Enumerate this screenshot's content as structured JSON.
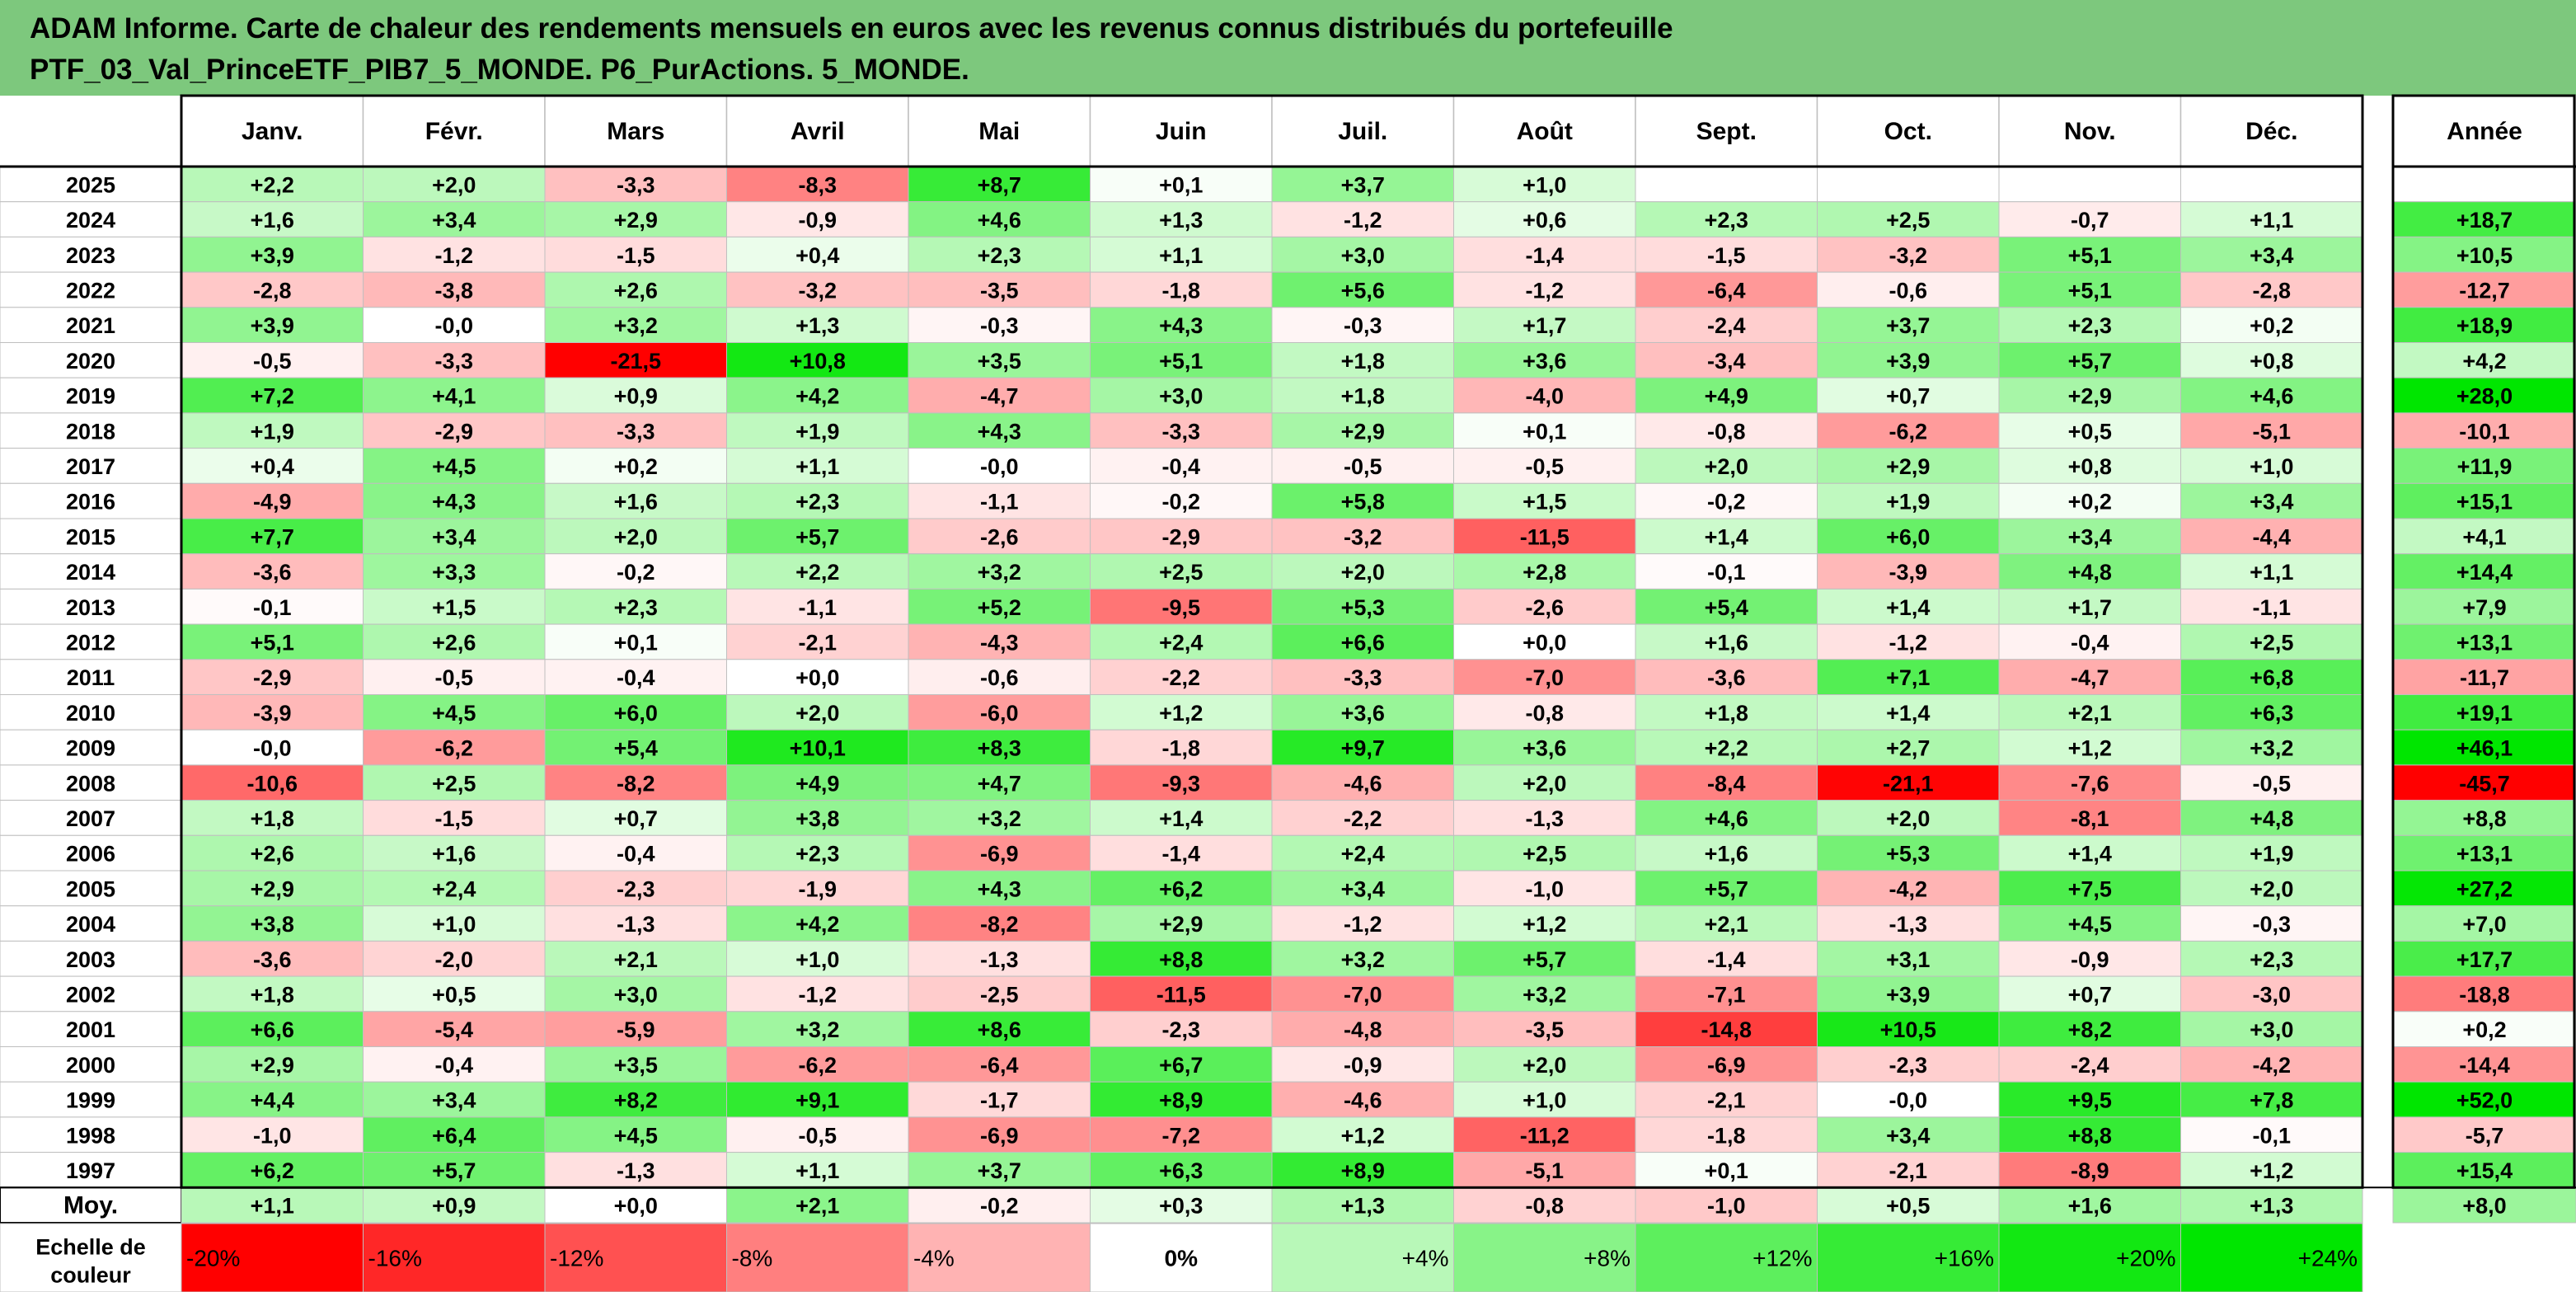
{
  "title_line1": "ADAM Informe. Carte de chaleur des rendements mensuels en euros avec les revenus connus distribués du portefeuille",
  "title_line2": "PTF_03_Val_PrinceETF_PIB7_5_MONDE. P6_PurActions. 5_MONDE.",
  "header_bg": "#7dc87d",
  "chart_data": {
    "type": "heatmap",
    "months": [
      "Janv.",
      "Févr.",
      "Mars",
      "Avril",
      "Mai",
      "Juin",
      "Juil.",
      "Août",
      "Sept.",
      "Oct.",
      "Nov.",
      "Déc."
    ],
    "year_label": "Année",
    "rows": [
      {
        "year": "2025",
        "values": [
          2.2,
          2.0,
          -3.3,
          -8.3,
          8.7,
          0.1,
          3.7,
          1.0,
          null,
          null,
          null,
          null
        ],
        "annual": null
      },
      {
        "year": "2024",
        "values": [
          1.6,
          3.4,
          2.9,
          -0.9,
          4.6,
          1.3,
          -1.2,
          0.6,
          2.3,
          2.5,
          -0.7,
          1.1
        ],
        "annual": 18.7
      },
      {
        "year": "2023",
        "values": [
          3.9,
          -1.2,
          -1.5,
          0.4,
          2.3,
          1.1,
          3.0,
          -1.4,
          -1.5,
          -3.2,
          5.1,
          3.4
        ],
        "annual": 10.5
      },
      {
        "year": "2022",
        "values": [
          -2.8,
          -3.8,
          2.6,
          -3.2,
          -3.5,
          -1.8,
          5.6,
          -1.2,
          -6.4,
          -0.6,
          5.1,
          -2.8
        ],
        "annual": -12.7
      },
      {
        "year": "2021",
        "values": [
          3.9,
          -0.0,
          3.2,
          1.3,
          -0.3,
          4.3,
          -0.3,
          1.7,
          -2.4,
          3.7,
          2.3,
          0.2
        ],
        "annual": 18.9
      },
      {
        "year": "2020",
        "values": [
          -0.5,
          -3.3,
          -21.5,
          10.8,
          3.5,
          5.1,
          1.8,
          3.6,
          -3.4,
          3.9,
          5.7,
          0.8
        ],
        "annual": 4.2
      },
      {
        "year": "2019",
        "values": [
          7.2,
          4.1,
          0.9,
          4.2,
          -4.7,
          3.0,
          1.8,
          -4.0,
          4.9,
          0.7,
          2.9,
          4.6
        ],
        "annual": 28.0
      },
      {
        "year": "2018",
        "values": [
          1.9,
          -2.9,
          -3.3,
          1.9,
          4.3,
          -3.3,
          2.9,
          0.1,
          -0.8,
          -6.2,
          0.5,
          -5.1
        ],
        "annual": -10.1
      },
      {
        "year": "2017",
        "values": [
          0.4,
          4.5,
          0.2,
          1.1,
          -0.0,
          -0.4,
          -0.5,
          -0.5,
          2.0,
          2.9,
          0.8,
          1.0
        ],
        "annual": 11.9
      },
      {
        "year": "2016",
        "values": [
          -4.9,
          4.3,
          1.6,
          2.3,
          -1.1,
          -0.2,
          5.8,
          1.5,
          -0.2,
          1.9,
          0.2,
          3.4
        ],
        "annual": 15.1
      },
      {
        "year": "2015",
        "values": [
          7.7,
          3.4,
          2.0,
          5.7,
          -2.6,
          -2.9,
          -3.2,
          -11.5,
          1.4,
          6.0,
          3.4,
          -4.4
        ],
        "annual": 4.1
      },
      {
        "year": "2014",
        "values": [
          -3.6,
          3.3,
          -0.2,
          2.2,
          3.2,
          2.5,
          2.0,
          2.8,
          -0.1,
          -3.9,
          4.8,
          1.1
        ],
        "annual": 14.4
      },
      {
        "year": "2013",
        "values": [
          -0.1,
          1.5,
          2.3,
          -1.1,
          5.2,
          -9.5,
          5.3,
          -2.6,
          5.4,
          1.4,
          1.7,
          -1.1
        ],
        "annual": 7.9
      },
      {
        "year": "2012",
        "values": [
          5.1,
          2.6,
          0.1,
          -2.1,
          -4.3,
          2.4,
          6.6,
          0.0,
          1.6,
          -1.2,
          -0.4,
          2.5
        ],
        "annual": 13.1
      },
      {
        "year": "2011",
        "values": [
          -2.9,
          -0.5,
          -0.4,
          0.0,
          -0.6,
          -2.2,
          -3.3,
          -7.0,
          -3.6,
          7.1,
          -4.7,
          6.8
        ],
        "annual": -11.7
      },
      {
        "year": "2010",
        "values": [
          -3.9,
          4.5,
          6.0,
          2.0,
          -6.0,
          1.2,
          3.6,
          -0.8,
          1.8,
          1.4,
          2.1,
          6.3
        ],
        "annual": 19.1
      },
      {
        "year": "2009",
        "values": [
          -0.0,
          -6.2,
          5.4,
          10.1,
          8.3,
          -1.8,
          9.7,
          3.6,
          2.2,
          2.7,
          1.2,
          3.2
        ],
        "annual": 46.1
      },
      {
        "year": "2008",
        "values": [
          -10.6,
          2.5,
          -8.2,
          4.9,
          4.7,
          -9.3,
          -4.6,
          2.0,
          -8.4,
          -21.1,
          -7.6,
          -0.5
        ],
        "annual": -45.7
      },
      {
        "year": "2007",
        "values": [
          1.8,
          -1.5,
          0.7,
          3.8,
          3.2,
          1.4,
          -2.2,
          -1.3,
          4.6,
          2.0,
          -8.1,
          4.8
        ],
        "annual": 8.8
      },
      {
        "year": "2006",
        "values": [
          2.6,
          1.6,
          -0.4,
          2.3,
          -6.9,
          -1.4,
          2.4,
          2.5,
          1.6,
          5.3,
          1.4,
          1.9
        ],
        "annual": 13.1
      },
      {
        "year": "2005",
        "values": [
          2.9,
          2.4,
          -2.3,
          -1.9,
          4.3,
          6.2,
          3.4,
          -1.0,
          5.7,
          -4.2,
          7.5,
          2.0
        ],
        "annual": 27.2
      },
      {
        "year": "2004",
        "values": [
          3.8,
          1.0,
          -1.3,
          4.2,
          -8.2,
          2.9,
          -1.2,
          1.2,
          2.1,
          -1.3,
          4.5,
          -0.3
        ],
        "annual": 7.0
      },
      {
        "year": "2003",
        "values": [
          -3.6,
          -2.0,
          2.1,
          1.0,
          -1.3,
          8.8,
          3.2,
          5.7,
          -1.4,
          3.1,
          -0.9,
          2.3
        ],
        "annual": 17.7
      },
      {
        "year": "2002",
        "values": [
          1.8,
          0.5,
          3.0,
          -1.2,
          -2.5,
          -11.5,
          -7.0,
          3.2,
          -7.1,
          3.9,
          0.7,
          -3.0
        ],
        "annual": -18.8
      },
      {
        "year": "2001",
        "values": [
          6.6,
          -5.4,
          -5.9,
          3.2,
          8.6,
          -2.3,
          -4.8,
          -3.5,
          -14.8,
          10.5,
          8.2,
          3.0
        ],
        "annual": 0.2
      },
      {
        "year": "2000",
        "values": [
          2.9,
          -0.4,
          3.5,
          -6.2,
          -6.4,
          6.7,
          -0.9,
          2.0,
          -6.9,
          -2.3,
          -2.4,
          -4.2
        ],
        "annual": -14.4
      },
      {
        "year": "1999",
        "values": [
          4.4,
          3.4,
          8.2,
          9.1,
          -1.7,
          8.9,
          -4.6,
          1.0,
          -2.1,
          -0.0,
          9.5,
          7.8
        ],
        "annual": 52.0
      },
      {
        "year": "1998",
        "values": [
          -1.0,
          6.4,
          4.5,
          -0.5,
          -6.9,
          -7.2,
          1.2,
          -11.2,
          -1.8,
          3.4,
          8.8,
          -0.1
        ],
        "annual": -5.7
      },
      {
        "year": "1997",
        "values": [
          6.2,
          5.7,
          -1.3,
          1.1,
          3.7,
          6.3,
          8.9,
          -5.1,
          0.1,
          -2.1,
          -8.9,
          1.2
        ],
        "annual": 15.4
      }
    ],
    "average": {
      "label": "Moy.",
      "values": [
        1.1,
        0.9,
        0.0,
        2.1,
        -0.2,
        0.3,
        1.3,
        -0.8,
        -1.0,
        0.5,
        1.6,
        1.3
      ],
      "annual": 8.0
    },
    "scale": {
      "label_line1": "Echelle de",
      "label_line2": "couleur",
      "labels": [
        "-20%",
        "-16%",
        "-12%",
        "-8%",
        "-4%",
        "0%",
        "+4%",
        "+8%",
        "+12%",
        "+16%",
        "+20%",
        "+24%"
      ],
      "values": [
        -20,
        -16,
        -12,
        -8,
        -4,
        0,
        4,
        8,
        12,
        16,
        20,
        24
      ]
    },
    "colors": {
      "negative_max": "#ff0000",
      "positive_max": "#00e600",
      "neutral": "#ffffff",
      "grid": "#bfbfbf"
    }
  }
}
